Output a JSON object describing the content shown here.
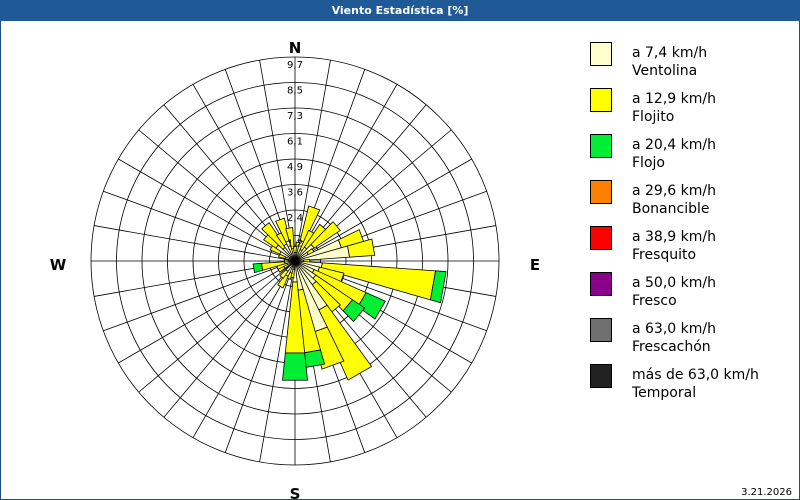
{
  "window": {
    "title": "Viento Estadística [%]"
  },
  "footer": {
    "date": "3.21.2026"
  },
  "chart_data": {
    "type": "windrose",
    "title": "Viento Estadística [%]",
    "unit": "%",
    "compass": [
      "N",
      "E",
      "S",
      "W"
    ],
    "ring_labels": [
      "1,2",
      "2,4",
      "3,6",
      "4,9",
      "6,1",
      "7,3",
      "8,5",
      "9,7"
    ],
    "rmax": 9.7,
    "sector_half_width_deg": 6,
    "categories": [
      {
        "label": "a 7,4 km/h",
        "name": "Ventolina",
        "color": "#ffffcc"
      },
      {
        "label": "a 12,9 km/h",
        "name": "Flojito",
        "color": "#ffff00"
      },
      {
        "label": "a 20,4 km/h",
        "name": "Flojo",
        "color": "#00ee33"
      },
      {
        "label": "a 29,6 km/h",
        "name": "Bonancible",
        "color": "#ff8000"
      },
      {
        "label": "a 38,9 km/h",
        "name": "Fresquito",
        "color": "#ff0000"
      },
      {
        "label": "a 50,0 km/h",
        "name": "Fresco",
        "color": "#8b008b"
      },
      {
        "label": "a 63,0 km/h",
        "name": "Frescachón",
        "color": "#707070"
      },
      {
        "label": "más de 63,0 km/h",
        "name": "Temporal",
        "color": "#222222"
      }
    ],
    "sectors": [
      {
        "dir": 10,
        "values": [
          0.4,
          0.5
        ]
      },
      {
        "dir": 20,
        "values": [
          1.0,
          1.7
        ]
      },
      {
        "dir": 30,
        "values": [
          0.6,
          1.0
        ]
      },
      {
        "dir": 40,
        "values": [
          0.8,
          1.3
        ]
      },
      {
        "dir": 50,
        "values": [
          1.1,
          1.5
        ]
      },
      {
        "dir": 60,
        "values": [
          0.7,
          0.3
        ]
      },
      {
        "dir": 70,
        "values": [
          2.3,
          1.1
        ]
      },
      {
        "dir": 80,
        "values": [
          2.6,
          1.2
        ]
      },
      {
        "dir": 90,
        "values": [
          0.4,
          0.3
        ]
      },
      {
        "dir": 100,
        "values": [
          1.3,
          5.4,
          0.5
        ]
      },
      {
        "dir": 110,
        "values": [
          1.2,
          1.2
        ]
      },
      {
        "dir": 120,
        "values": [
          1.0,
          2.7,
          1.0
        ]
      },
      {
        "dir": 130,
        "values": [
          1.2,
          2.1,
          0.7
        ]
      },
      {
        "dir": 140,
        "values": [
          1.4,
          1.6
        ]
      },
      {
        "dir": 150,
        "values": [
          2.6,
          3.6
        ]
      },
      {
        "dir": 160,
        "values": [
          3.5,
          1.8
        ]
      },
      {
        "dir": 170,
        "values": [
          1.4,
          3.0,
          0.7
        ]
      },
      {
        "dir": 180,
        "values": [
          1.0,
          3.4,
          1.3
        ]
      },
      {
        "dir": 190,
        "values": [
          0.4,
          0.4
        ]
      },
      {
        "dir": 200,
        "values": [
          0.6,
          0.3
        ]
      },
      {
        "dir": 210,
        "values": [
          0.8,
          0.6
        ]
      },
      {
        "dir": 220,
        "values": [
          0.6,
          0.4
        ]
      },
      {
        "dir": 240,
        "values": [
          0.6,
          0.3
        ]
      },
      {
        "dir": 250,
        "values": [
          0.4,
          0.5
        ]
      },
      {
        "dir": 260,
        "values": [
          0.5,
          1.1,
          0.4
        ]
      },
      {
        "dir": 270,
        "values": [
          0.3,
          0.2
        ]
      },
      {
        "dir": 290,
        "values": [
          0.5,
          0.3
        ]
      },
      {
        "dir": 300,
        "values": [
          0.8,
          0.5
        ]
      },
      {
        "dir": 310,
        "values": [
          1.1,
          0.7
        ]
      },
      {
        "dir": 320,
        "values": [
          0.8,
          1.4
        ]
      },
      {
        "dir": 330,
        "values": [
          0.9,
          0.6
        ]
      },
      {
        "dir": 340,
        "values": [
          1.0,
          1.1
        ]
      },
      {
        "dir": 350,
        "values": [
          0.6,
          1.0
        ]
      },
      {
        "dir": 360,
        "values": [
          0.4,
          0.3
        ]
      }
    ]
  }
}
